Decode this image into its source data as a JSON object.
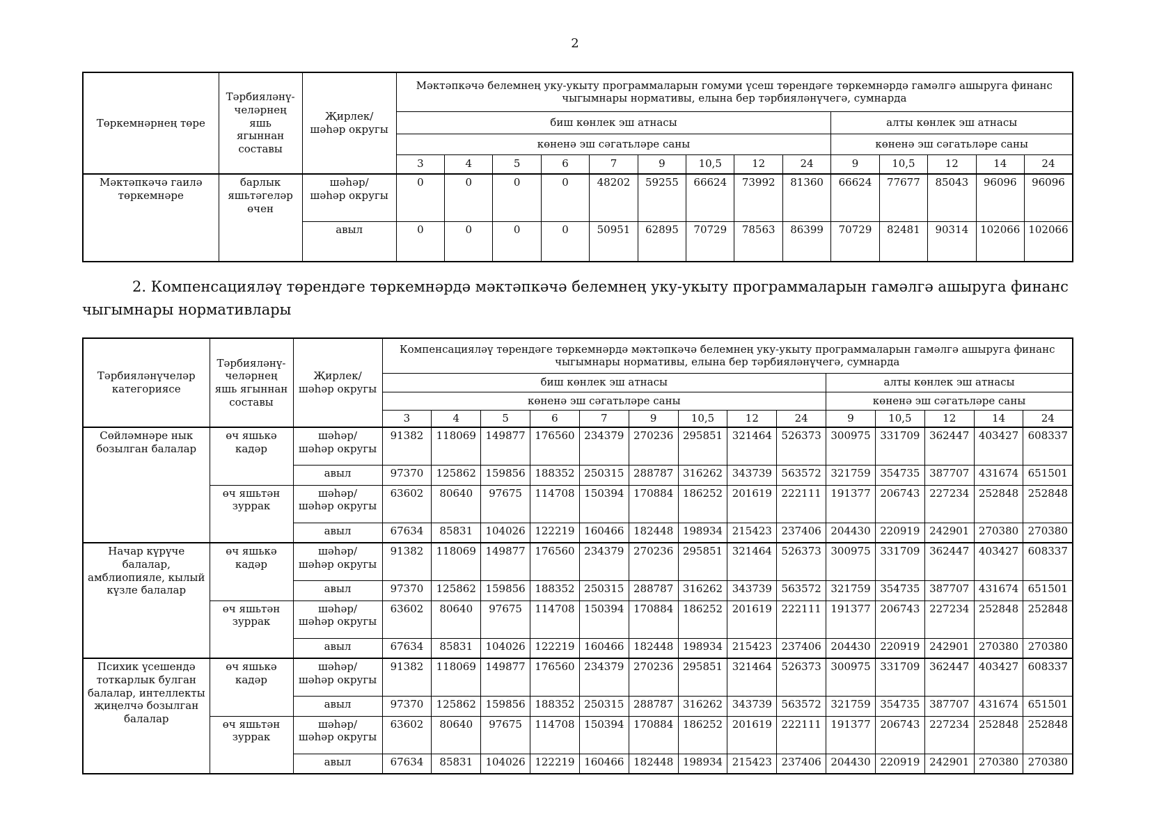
{
  "page": {
    "number": "2"
  },
  "shared": {
    "five_day_label": "биш көнлек эш атнасы",
    "six_day_label": "алты көнлек эш атнасы",
    "hours_label": "көненә эш сәгатьләре саны",
    "five_day_hours": [
      "3",
      "4",
      "5",
      "6",
      "7",
      "9",
      "10,5",
      "12",
      "24"
    ],
    "six_day_hours": [
      "9",
      "10,5",
      "12",
      "14",
      "24"
    ],
    "locality_header": "Җирлек/\nшәһәр округы",
    "city_label": "шәһәр/\nшәһәр округы",
    "village_label": "авыл"
  },
  "table1": {
    "col1_header": "Төркемнәрнең төре",
    "col2_header": "Тәрбияләнү-\nчеләрнең\nяшь\nягыннан\nсоставы",
    "main_header": "Мәктәпкәчә белемнең уку-укыту программаларын гомуми үсеш төрендәге төркемнәрдә гамәлгә ашыруга финанс чыгымнары нормативы, елына бер тәрбияләнүчегә, сумнарда",
    "groups": [
      {
        "category": "Мәктәпкәчә гаилә төркемнәре",
        "ages": [
          {
            "age": "барлык\nяшьтәгеләр\nөчен",
            "rows": [
              {
                "locality": "city",
                "values": [
                  "0",
                  "0",
                  "0",
                  "0",
                  "48202",
                  "59255",
                  "66624",
                  "73992",
                  "81360",
                  "66624",
                  "77677",
                  "85043",
                  "96096",
                  "96096"
                ]
              },
              {
                "locality": "village",
                "values": [
                  "0",
                  "0",
                  "0",
                  "0",
                  "50951",
                  "62895",
                  "70729",
                  "78563",
                  "86399",
                  "70729",
                  "82481",
                  "90314",
                  "102066",
                  "102066"
                ]
              }
            ]
          }
        ]
      }
    ]
  },
  "section2": {
    "heading": "2. Компенсацияләү төрендәге төркемнәрдә мәктәпкәчә белемнең уку-укыту программаларын гамәлгә ашыруга финанс чыгымнары нормативлары"
  },
  "table2": {
    "col1_header": "Тәрбияләнүчеләр категориясе",
    "col2_header": "Тәрбияләнү-\nчеләрнең\nяшь ягыннан\nсоставы",
    "main_header": "Компенсацияләү төрендәге төркемнәрдә мәктәпкәчә белемнең уку-укыту программаларын гамәлгә ашыруга финанс чыгымнары нормативы, елына бер тәрбияләнүчегә, сумнарда",
    "groups": [
      {
        "category": "Сөйләмнәре нык бозылган балалар",
        "ages": [
          {
            "age": "өч яшькә\nкадәр",
            "rows": [
              {
                "locality": "city",
                "values": [
                  "91382",
                  "118069",
                  "149877",
                  "176560",
                  "234379",
                  "270236",
                  "295851",
                  "321464",
                  "526373",
                  "300975",
                  "331709",
                  "362447",
                  "403427",
                  "608337"
                ]
              },
              {
                "locality": "village",
                "values": [
                  "97370",
                  "125862",
                  "159856",
                  "188352",
                  "250315",
                  "288787",
                  "316262",
                  "343739",
                  "563572",
                  "321759",
                  "354735",
                  "387707",
                  "431674",
                  "651501"
                ]
              }
            ]
          },
          {
            "age": "өч яшьтән\nзуррак",
            "rows": [
              {
                "locality": "city",
                "values": [
                  "63602",
                  "80640",
                  "97675",
                  "114708",
                  "150394",
                  "170884",
                  "186252",
                  "201619",
                  "222111",
                  "191377",
                  "206743",
                  "227234",
                  "252848",
                  "252848"
                ]
              },
              {
                "locality": "village",
                "values": [
                  "67634",
                  "85831",
                  "104026",
                  "122219",
                  "160466",
                  "182448",
                  "198934",
                  "215423",
                  "237406",
                  "204430",
                  "220919",
                  "242901",
                  "270380",
                  "270380"
                ]
              }
            ]
          }
        ]
      },
      {
        "category": "Начар күрүче балалар, амблиопияле, кылый күзле балалар",
        "ages": [
          {
            "age": "өч яшькә\nкадәр",
            "rows": [
              {
                "locality": "city",
                "values": [
                  "91382",
                  "118069",
                  "149877",
                  "176560",
                  "234379",
                  "270236",
                  "295851",
                  "321464",
                  "526373",
                  "300975",
                  "331709",
                  "362447",
                  "403427",
                  "608337"
                ]
              },
              {
                "locality": "village",
                "values": [
                  "97370",
                  "125862",
                  "159856",
                  "188352",
                  "250315",
                  "288787",
                  "316262",
                  "343739",
                  "563572",
                  "321759",
                  "354735",
                  "387707",
                  "431674",
                  "651501"
                ]
              }
            ]
          },
          {
            "age": "өч яшьтән\nзуррак",
            "rows": [
              {
                "locality": "city",
                "values": [
                  "63602",
                  "80640",
                  "97675",
                  "114708",
                  "150394",
                  "170884",
                  "186252",
                  "201619",
                  "222111",
                  "191377",
                  "206743",
                  "227234",
                  "252848",
                  "252848"
                ]
              },
              {
                "locality": "village",
                "values": [
                  "67634",
                  "85831",
                  "104026",
                  "122219",
                  "160466",
                  "182448",
                  "198934",
                  "215423",
                  "237406",
                  "204430",
                  "220919",
                  "242901",
                  "270380",
                  "270380"
                ]
              }
            ]
          }
        ]
      },
      {
        "category": "Психик үсешендә тоткарлык булган балалар, интеллекты җиңелчә бозылган балалар",
        "ages": [
          {
            "age": "өч яшькә\nкадәр",
            "rows": [
              {
                "locality": "city",
                "values": [
                  "91382",
                  "118069",
                  "149877",
                  "176560",
                  "234379",
                  "270236",
                  "295851",
                  "321464",
                  "526373",
                  "300975",
                  "331709",
                  "362447",
                  "403427",
                  "608337"
                ]
              },
              {
                "locality": "village",
                "values": [
                  "97370",
                  "125862",
                  "159856",
                  "188352",
                  "250315",
                  "288787",
                  "316262",
                  "343739",
                  "563572",
                  "321759",
                  "354735",
                  "387707",
                  "431674",
                  "651501"
                ]
              }
            ]
          },
          {
            "age": "өч яшьтән\nзуррак",
            "rows": [
              {
                "locality": "city",
                "values": [
                  "63602",
                  "80640",
                  "97675",
                  "114708",
                  "150394",
                  "170884",
                  "186252",
                  "201619",
                  "222111",
                  "191377",
                  "206743",
                  "227234",
                  "252848",
                  "252848"
                ]
              },
              {
                "locality": "village",
                "values": [
                  "67634",
                  "85831",
                  "104026",
                  "122219",
                  "160466",
                  "182448",
                  "198934",
                  "215423",
                  "237406",
                  "204430",
                  "220919",
                  "242901",
                  "270380",
                  "270380"
                ]
              }
            ]
          }
        ]
      }
    ]
  }
}
